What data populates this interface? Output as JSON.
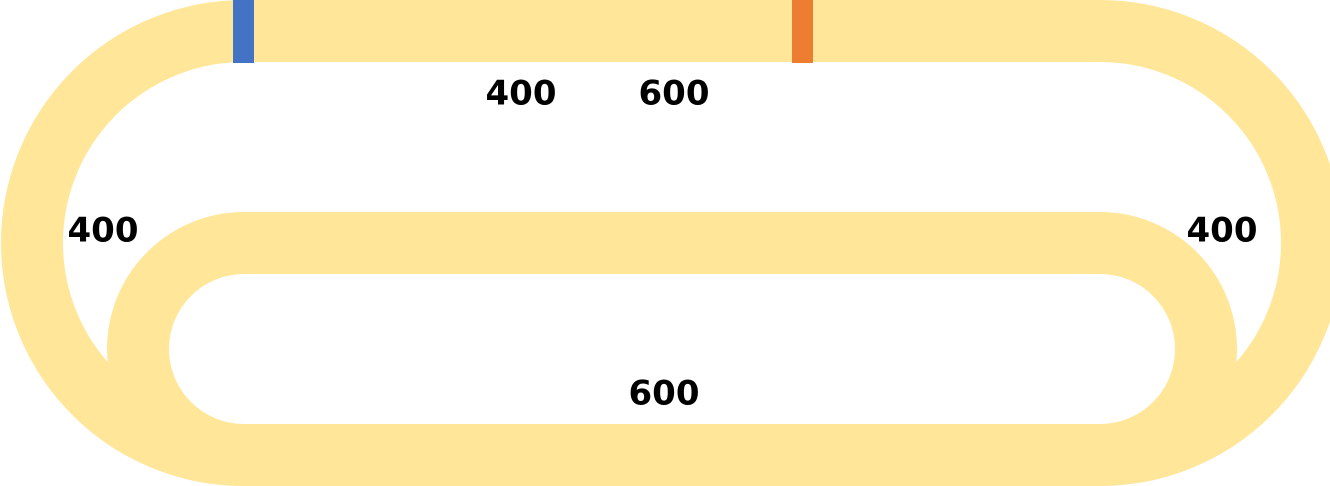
{
  "diagram": {
    "track_color": "#ffe699",
    "start_marker_color": "#4472c4",
    "end_marker_color": "#ed7d31",
    "label_color": "#000000",
    "labels": {
      "top_left_segment": "400",
      "top_right_segment": "600",
      "left_curve": "400",
      "right_curve": "400",
      "bottom_segment": "600"
    }
  }
}
